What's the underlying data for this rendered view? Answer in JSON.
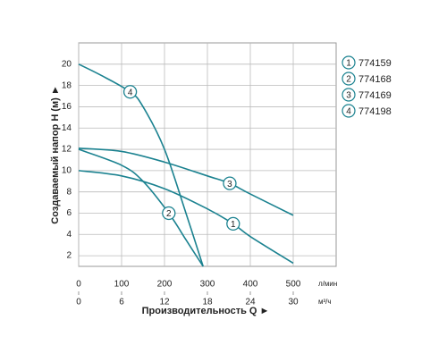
{
  "chart_data": {
    "type": "line",
    "x_label": "Производительность Q ►",
    "y_label": "Создаваемый напор H (м) ►",
    "x_unit": "л/мин",
    "x2_unit": "м³/ч",
    "xlim": [
      0,
      600
    ],
    "xticks": [
      0,
      100,
      200,
      300,
      400,
      500
    ],
    "x2lim": [
      0,
      36
    ],
    "x2ticks": [
      0,
      6,
      12,
      18,
      24,
      30
    ],
    "ylim": [
      1,
      22
    ],
    "yticks": [
      2,
      4,
      6,
      8,
      10,
      12,
      14,
      16,
      18,
      20
    ],
    "grid": true,
    "series": [
      {
        "name": "774159",
        "marker": "1",
        "color": "#1b8290",
        "x": [
          0,
          100,
          200,
          300,
          360,
          400,
          500
        ],
        "values": [
          10,
          9.5,
          8.3,
          6.4,
          5,
          3.8,
          1.3
        ]
      },
      {
        "name": "774168",
        "marker": "2",
        "color": "#1b8290",
        "x": [
          0,
          100,
          150,
          210,
          250,
          290
        ],
        "values": [
          12,
          10.5,
          9,
          6,
          3.5,
          1
        ]
      },
      {
        "name": "774169",
        "marker": "3",
        "color": "#1b8290",
        "x": [
          0,
          100,
          200,
          300,
          352,
          400,
          500
        ],
        "values": [
          12.1,
          11.8,
          10.8,
          9.5,
          8.8,
          7.8,
          5.8
        ]
      },
      {
        "name": "774198",
        "marker": "4",
        "color": "#1b8290",
        "x": [
          0,
          50,
          120,
          150,
          200,
          250,
          290
        ],
        "values": [
          20,
          19,
          17.4,
          16,
          12,
          6,
          1
        ]
      }
    ]
  }
}
